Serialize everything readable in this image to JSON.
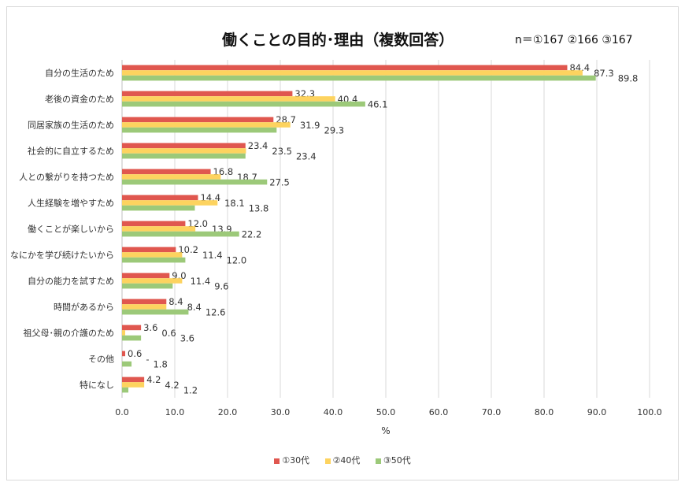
{
  "chart_data": {
    "type": "bar",
    "orientation": "horizontal",
    "title": "働くことの目的･理由（複数回答）",
    "subtitle": "n＝①167 ②166 ③167",
    "xlabel": "%",
    "ylabel": "",
    "xlim": [
      0,
      100
    ],
    "xticks": [
      "0.0",
      "10.0",
      "20.0",
      "30.0",
      "40.0",
      "50.0",
      "60.0",
      "70.0",
      "80.0",
      "90.0",
      "100.0"
    ],
    "grid": true,
    "legend_position": "bottom",
    "categories": [
      "自分の生活のため",
      "老後の資金のため",
      "同居家族の生活のため",
      "社会的に自立するため",
      "人との繋がりを持つため",
      "人生経験を増やすため",
      "働くことが楽しいから",
      "なにかを学び続けたいから",
      "自分の能力を試すため",
      "時間があるから",
      "祖父母･親の介護のため",
      "その他",
      "特になし"
    ],
    "series": [
      {
        "name": "①30代",
        "color": "#e0574f",
        "values": [
          84.4,
          32.3,
          28.7,
          23.4,
          16.8,
          14.4,
          12.0,
          10.2,
          9.0,
          8.4,
          3.6,
          0.6,
          4.2
        ],
        "labels": [
          "84.4",
          "32.3",
          "28.7",
          "23.4",
          "16.8",
          "14.4",
          "12.0",
          "10.2",
          "9.0",
          "8.4",
          "3.6",
          "0.6",
          "4.2"
        ]
      },
      {
        "name": "②40代",
        "color": "#fdd35f",
        "values": [
          87.3,
          40.4,
          31.9,
          23.5,
          18.7,
          18.1,
          13.9,
          11.4,
          11.4,
          8.4,
          0.6,
          0,
          4.2
        ],
        "labels": [
          "87.3",
          "40.4",
          "31.9",
          "23.5",
          "18.7",
          "18.1",
          "13.9",
          "11.4",
          "11.4",
          "8.4",
          "0.6",
          "-",
          "4.2"
        ]
      },
      {
        "name": "③50代",
        "color": "#9cc979",
        "values": [
          89.8,
          46.1,
          29.3,
          23.4,
          27.5,
          13.8,
          22.2,
          12.0,
          9.6,
          12.6,
          3.6,
          1.8,
          1.2
        ],
        "labels": [
          "89.8",
          "46.1",
          "29.3",
          "23.4",
          "27.5",
          "13.8",
          "22.2",
          "12.0",
          "9.6",
          "12.6",
          "3.6",
          "1.8",
          "1.2"
        ]
      }
    ]
  }
}
